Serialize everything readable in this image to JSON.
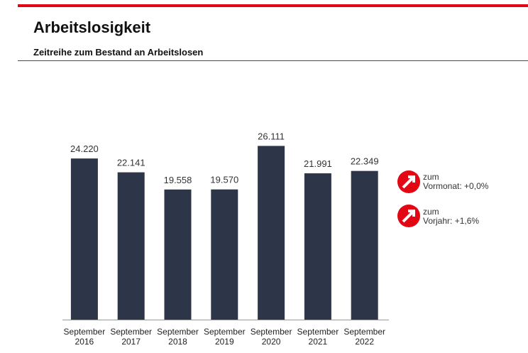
{
  "header": {
    "title": "Arbeitslosigkeit",
    "subtitle": "Zeitreihe zum Bestand an Arbeitslosen"
  },
  "chart_data": {
    "type": "bar",
    "categories": [
      "September 2016",
      "September 2017",
      "September 2018",
      "September 2019",
      "September 2020",
      "September 2021",
      "September 2022"
    ],
    "values": [
      24220,
      22141,
      19558,
      19570,
      26111,
      21991,
      22349
    ],
    "value_labels": [
      "24.220",
      "22.141",
      "19.558",
      "19.570",
      "26.111",
      "21.991",
      "22.349"
    ],
    "color": "#2d3548",
    "ylim": [
      0,
      30000
    ]
  },
  "indicators": [
    {
      "line1": "zum",
      "label": "Vormonat:",
      "value": "+0,0%"
    },
    {
      "line1": "zum",
      "label": "Vorjahr:",
      "value": "+1,6%"
    }
  ]
}
